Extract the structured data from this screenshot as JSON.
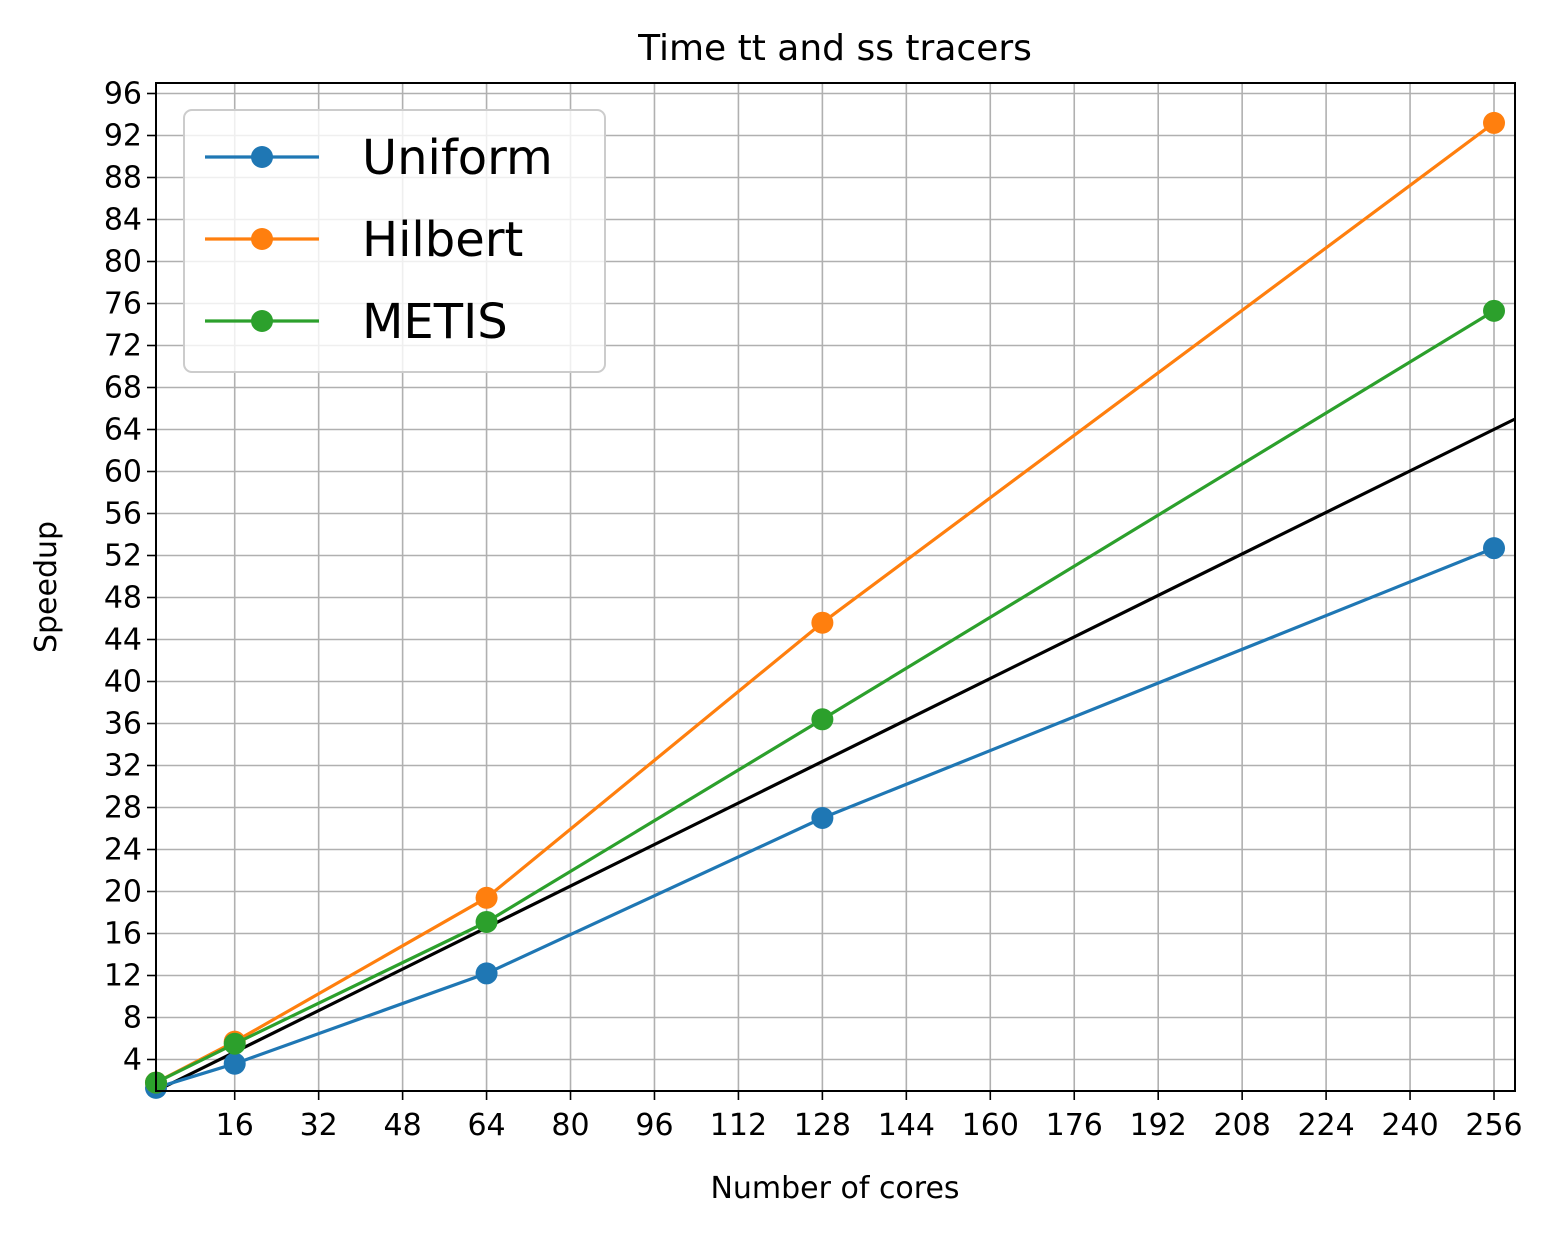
{
  "chart_data": {
    "type": "line",
    "title": "Time tt and ss tracers",
    "xlabel": "Number of cores",
    "ylabel": "Speedup",
    "xlim": [
      1,
      260
    ],
    "ylim": [
      1,
      97
    ],
    "xticks": [
      16,
      32,
      48,
      64,
      80,
      96,
      112,
      128,
      144,
      160,
      176,
      192,
      208,
      224,
      240,
      256
    ],
    "yticks": [
      4,
      8,
      12,
      16,
      20,
      24,
      28,
      32,
      36,
      40,
      44,
      48,
      52,
      56,
      60,
      64,
      68,
      72,
      76,
      80,
      84,
      88,
      92,
      96
    ],
    "grid": true,
    "legend_position": "top-left",
    "series": [
      {
        "name": "Uniform",
        "color": "#1f77b4",
        "marker": "circle",
        "x": [
          1,
          16,
          64,
          128,
          256
        ],
        "y": [
          1.3,
          3.6,
          12.2,
          27.0,
          52.7
        ]
      },
      {
        "name": "Hilbert",
        "color": "#ff7f0e",
        "marker": "circle",
        "x": [
          1,
          16,
          64,
          128,
          256
        ],
        "y": [
          1.8,
          5.7,
          19.4,
          45.6,
          93.2
        ]
      },
      {
        "name": "METIS",
        "color": "#2ca02c",
        "marker": "circle",
        "x": [
          1,
          16,
          64,
          128,
          256
        ],
        "y": [
          1.8,
          5.5,
          17.1,
          36.4,
          75.3
        ]
      }
    ],
    "reference_line": {
      "color": "#000000",
      "x": [
        1,
        260
      ],
      "y": [
        1,
        65
      ]
    }
  }
}
